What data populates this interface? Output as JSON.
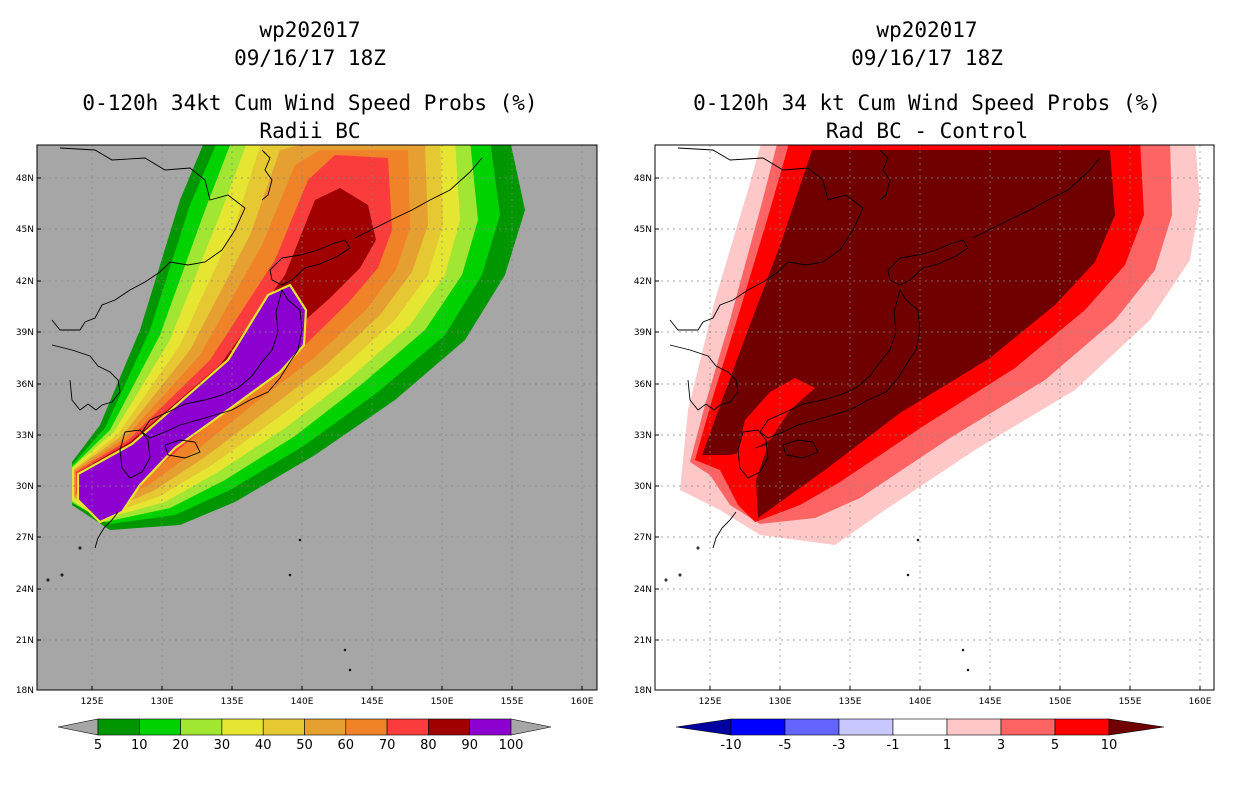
{
  "left": {
    "storm_id": "wp202017",
    "datetime": "09/16/17 18Z",
    "title": "0-120h 34kt Cum Wind Speed Probs (%)",
    "subtitle": "Radii BC",
    "colorbar": {
      "labels": [
        "5",
        "10",
        "20",
        "30",
        "40",
        "50",
        "60",
        "70",
        "80",
        "90",
        "100"
      ],
      "colors": [
        "#009600",
        "#00d200",
        "#a0e632",
        "#e6e632",
        "#e6c832",
        "#e6a032",
        "#f08228",
        "#fa3c3c",
        "#a00000",
        "#8c00d0"
      ]
    }
  },
  "right": {
    "storm_id": "wp202017",
    "datetime": "09/16/17 18Z",
    "title": "0-120h 34 kt Cum Wind Speed Probs (%)",
    "subtitle": "Rad BC - Control",
    "colorbar": {
      "labels": [
        "-10",
        "-5",
        "-3",
        "-1",
        "1",
        "3",
        "5",
        "10"
      ],
      "colors": [
        "#0000a0",
        "#0000ff",
        "#6464ff",
        "#c8c8ff",
        "#ffffff",
        "#ffc8c8",
        "#ff6464",
        "#ff0000",
        "#700000"
      ]
    }
  },
  "axes": {
    "lat_labels": [
      "48N",
      "45N",
      "42N",
      "39N",
      "36N",
      "33N",
      "30N",
      "27N",
      "24N",
      "21N",
      "18N"
    ],
    "lon_labels": [
      "125E",
      "130E",
      "135E",
      "140E",
      "145E",
      "150E",
      "155E",
      "160E"
    ]
  }
}
